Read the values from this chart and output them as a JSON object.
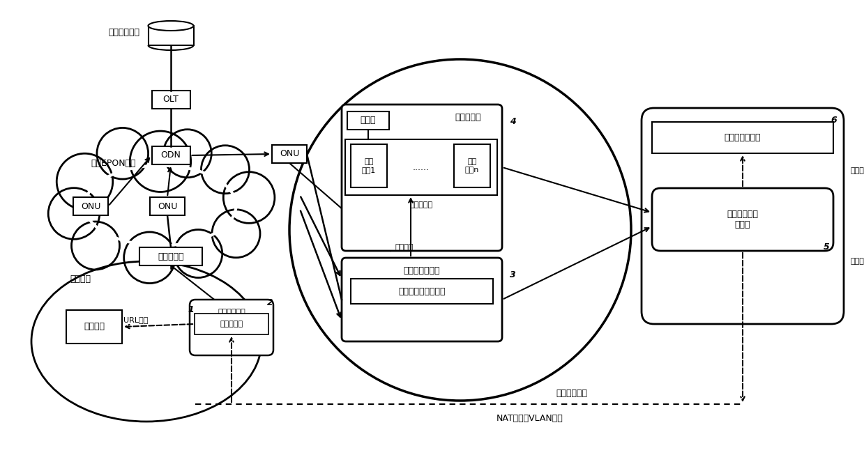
{
  "bg_color": "#ffffff",
  "line_color": "#000000",
  "text_color": "#000000",
  "fs": 9,
  "fs_s": 8,
  "labels": {
    "isp_router": "运营商路由器",
    "epon": "小区EPON网络",
    "olt": "OLT",
    "odn": "ODN",
    "onu1": "ONU",
    "onu2": "ONU",
    "onu3": "ONU",
    "home_router": "家用路由器",
    "home_user": "家庭用户",
    "playback": "播放终端",
    "url_cast": "URL投屏",
    "mobile": "移动智能终端",
    "user_ctrl": "用户控制器",
    "router_box": "路由器",
    "analog_zone": "模拟投屏区",
    "shared_pool": "共享终端池",
    "shared1": "共享\n终端1",
    "dots": "......",
    "sharedn": "共享\n终端n",
    "schedule": "调度管理",
    "share_mgr": "共享管理服务器",
    "net_video_pool": "网络视频应用账号池",
    "analog_player": "模拟投屏播放器",
    "net_video_ctrl": "网络视频应用\n控制器",
    "analog_cast": "模拟投屏",
    "shared_terminal": "共享终端",
    "remote_ctrl": "远程桌面控制",
    "nat_vlan": "NAT打洞或VLAN直连",
    "num1": "1",
    "num2": "2",
    "num3": "3",
    "num4": "4",
    "num5": "5",
    "num6": "6"
  }
}
